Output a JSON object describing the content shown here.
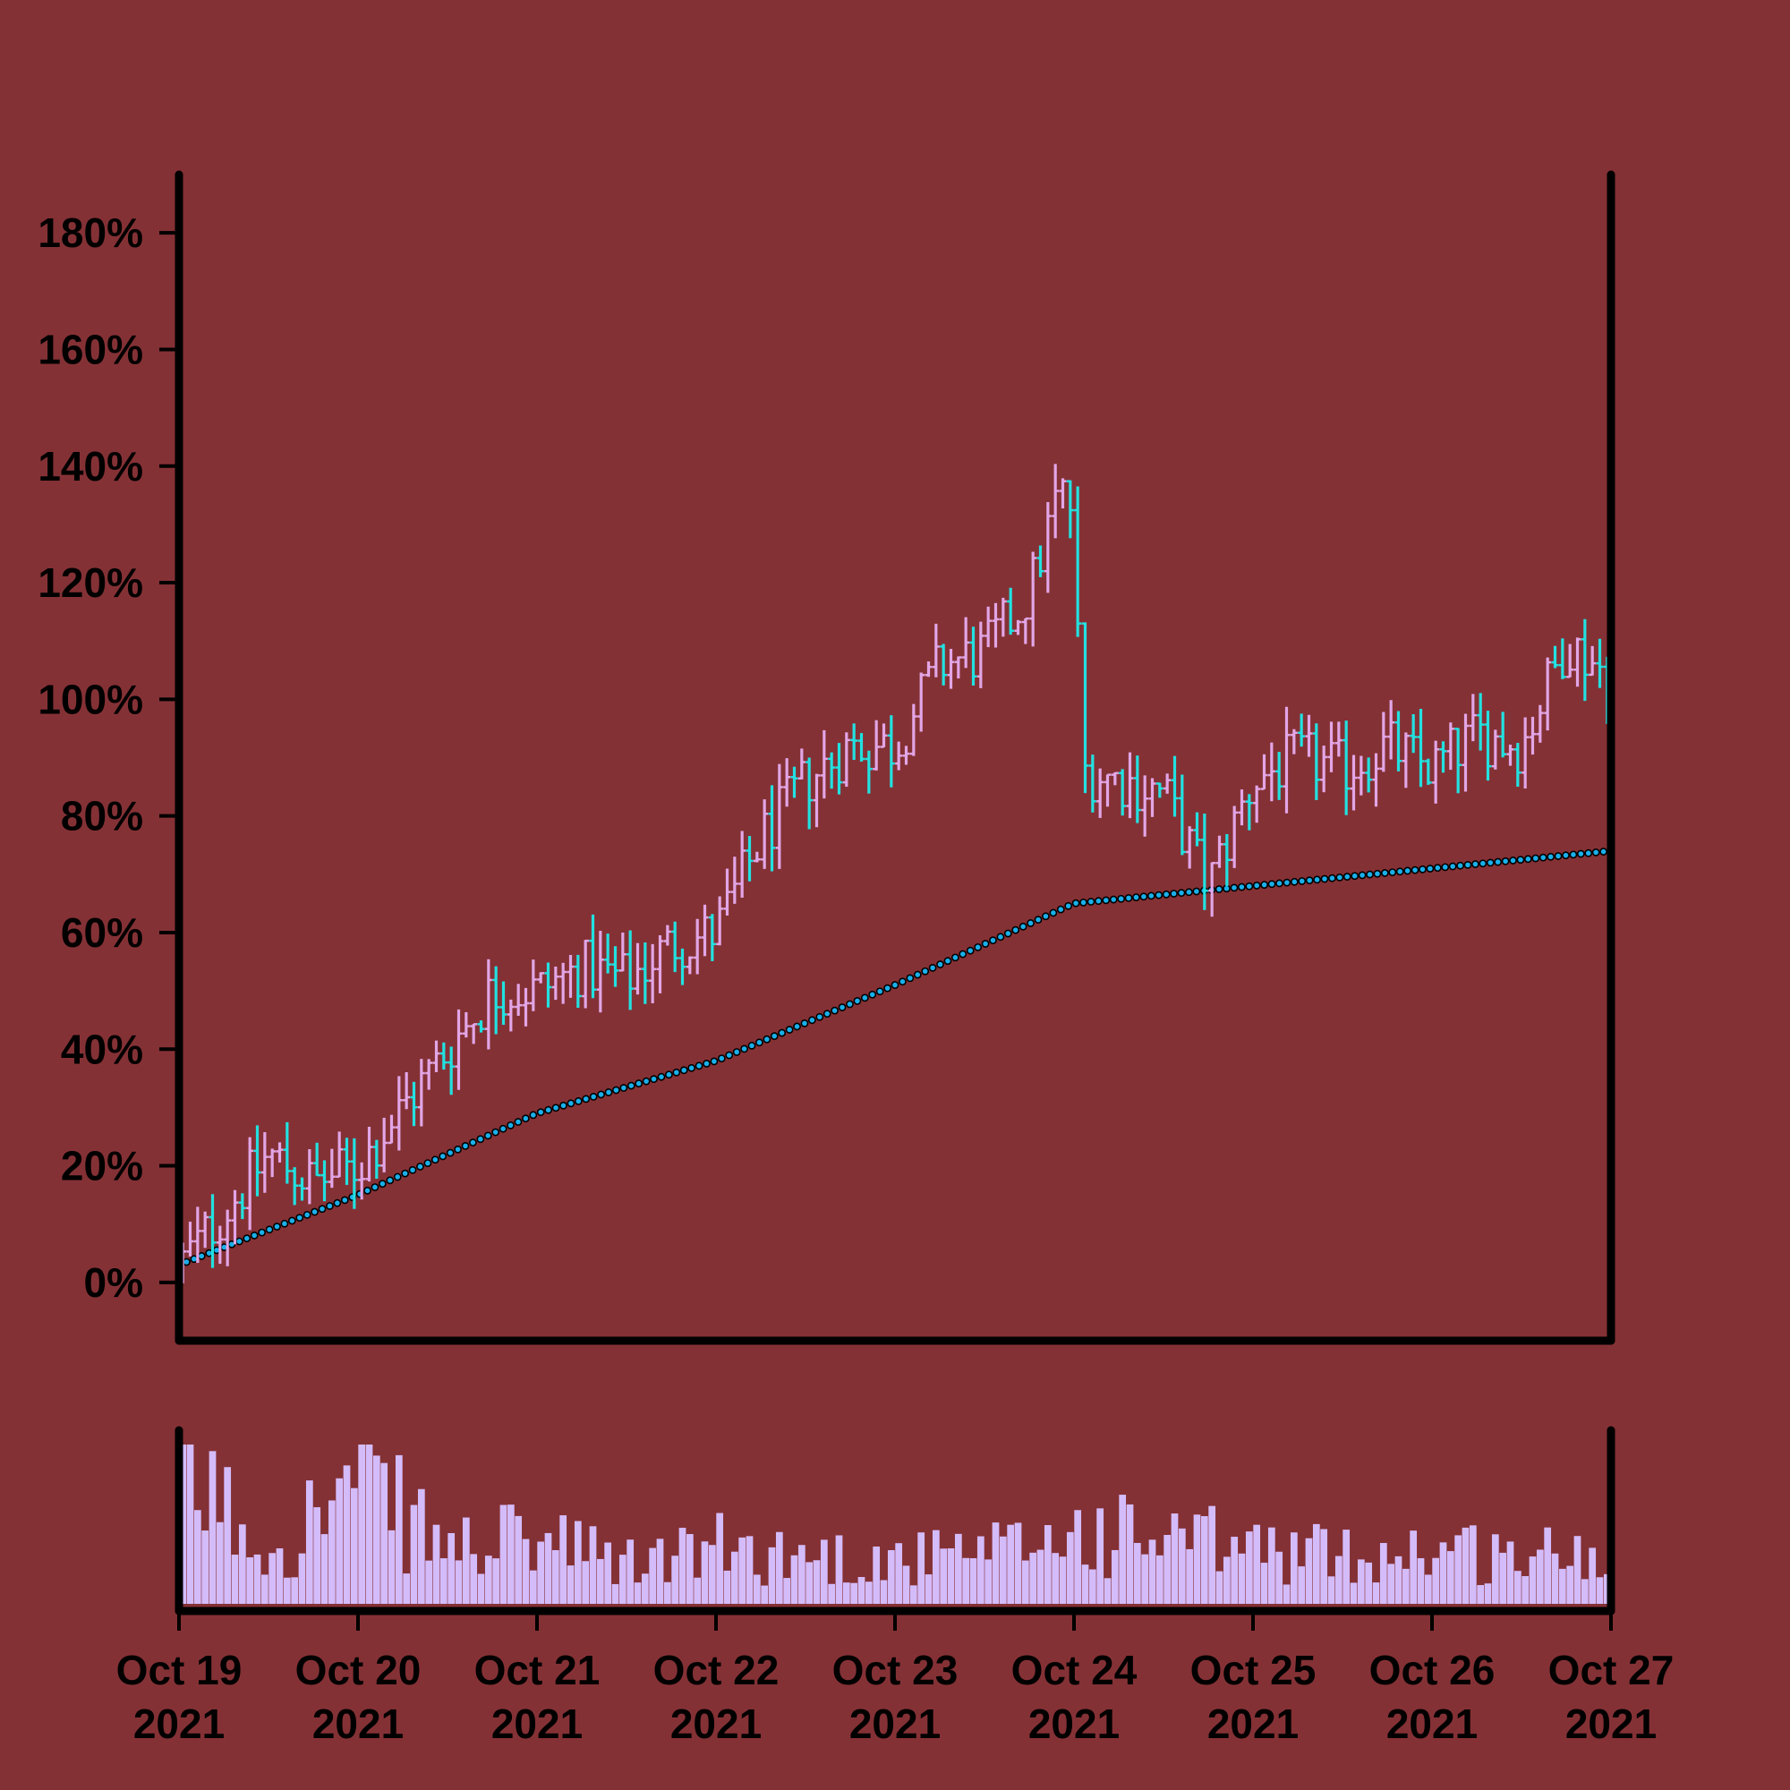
{
  "chart_data": {
    "type": "ohlc",
    "title": "",
    "xlabel": "",
    "ylabel": "",
    "background_color": "#843135",
    "up_color": "#e2a6e6",
    "down_color": "#22e1e0",
    "ma_color": "#1ab0ea",
    "volume_color": "#d4bcfb",
    "y_axis": {
      "range": [
        -10,
        190
      ],
      "ticks": [
        {
          "value": 0,
          "label": "0%"
        },
        {
          "value": 20,
          "label": "20%"
        },
        {
          "value": 40,
          "label": "40%"
        },
        {
          "value": 60,
          "label": "60%"
        },
        {
          "value": 80,
          "label": "80%"
        },
        {
          "value": 100,
          "label": "100%"
        },
        {
          "value": 120,
          "label": "120%"
        },
        {
          "value": 140,
          "label": "140%"
        },
        {
          "value": 160,
          "label": "160%"
        },
        {
          "value": 180,
          "label": "180%"
        }
      ]
    },
    "x_axis": {
      "range": [
        "2021-10-19",
        "2021-10-27"
      ],
      "ticks": [
        {
          "date": "2021-10-19",
          "line1": "Oct 19",
          "line2": "2021"
        },
        {
          "date": "2021-10-20",
          "line1": "Oct 20",
          "line2": "2021"
        },
        {
          "date": "2021-10-21",
          "line1": "Oct 21",
          "line2": "2021"
        },
        {
          "date": "2021-10-22",
          "line1": "Oct 22",
          "line2": "2021"
        },
        {
          "date": "2021-10-23",
          "line1": "Oct 23",
          "line2": "2021"
        },
        {
          "date": "2021-10-24",
          "line1": "Oct 24",
          "line2": "2021"
        },
        {
          "date": "2021-10-25",
          "line1": "Oct 25",
          "line2": "2021"
        },
        {
          "date": "2021-10-26",
          "line1": "Oct 26",
          "line2": "2021"
        },
        {
          "date": "2021-10-27",
          "line1": "Oct 27",
          "line2": "2021"
        }
      ]
    },
    "close_trend": [
      [
        "2021-10-19 00:00",
        3
      ],
      [
        "2021-10-19 06:00",
        12
      ],
      [
        "2021-10-19 12:00",
        22
      ],
      [
        "2021-10-19 18:00",
        17
      ],
      [
        "2021-10-20 00:00",
        20
      ],
      [
        "2021-10-20 06:00",
        30
      ],
      [
        "2021-10-20 12:00",
        40
      ],
      [
        "2021-10-20 18:00",
        50
      ],
      [
        "2021-10-21 00:00",
        50
      ],
      [
        "2021-10-21 06:00",
        54
      ],
      [
        "2021-10-21 12:00",
        52
      ],
      [
        "2021-10-21 18:00",
        58
      ],
      [
        "2021-10-22 00:00",
        60
      ],
      [
        "2021-10-22 06:00",
        76
      ],
      [
        "2021-10-22 12:00",
        86
      ],
      [
        "2021-10-22 18:00",
        92
      ],
      [
        "2021-10-23 00:00",
        92
      ],
      [
        "2021-10-23 06:00",
        106
      ],
      [
        "2021-10-23 12:00",
        108
      ],
      [
        "2021-10-23 18:00",
        118
      ],
      [
        "2021-10-23 22:00",
        136
      ],
      [
        "2021-10-24 00:00",
        132
      ],
      [
        "2021-10-24 01:00",
        88
      ],
      [
        "2021-10-24 12:00",
        84
      ],
      [
        "2021-10-24 18:00",
        68
      ],
      [
        "2021-10-25 00:00",
        86
      ],
      [
        "2021-10-25 06:00",
        90
      ],
      [
        "2021-10-25 12:00",
        88
      ],
      [
        "2021-10-25 18:00",
        92
      ],
      [
        "2021-10-26 00:00",
        88
      ],
      [
        "2021-10-26 06:00",
        94
      ],
      [
        "2021-10-26 12:00",
        92
      ],
      [
        "2021-10-26 18:00",
        110
      ],
      [
        "2021-10-27 00:00",
        104
      ]
    ],
    "moving_average": [
      [
        "2021-10-19 00:00",
        3
      ],
      [
        "2021-10-20 00:00",
        15
      ],
      [
        "2021-10-21 00:00",
        29
      ],
      [
        "2021-10-22 00:00",
        38
      ],
      [
        "2021-10-23 00:00",
        51
      ],
      [
        "2021-10-24 00:00",
        65
      ],
      [
        "2021-10-25 00:00",
        68
      ],
      [
        "2021-10-26 00:00",
        71
      ],
      [
        "2021-10-27 00:00",
        74
      ]
    ],
    "volume_trend": [
      [
        "2021-10-19 00:00",
        0.85
      ],
      [
        "2021-10-19 12:00",
        0.35
      ],
      [
        "2021-10-20 00:00",
        0.75
      ],
      [
        "2021-10-20 12:00",
        0.35
      ],
      [
        "2021-10-21 00:00",
        0.4
      ],
      [
        "2021-10-21 12:00",
        0.25
      ],
      [
        "2021-10-22 00:00",
        0.35
      ],
      [
        "2021-10-22 12:00",
        0.3
      ],
      [
        "2021-10-23 00:00",
        0.28
      ],
      [
        "2021-10-23 12:00",
        0.3
      ],
      [
        "2021-10-24 00:00",
        0.45
      ],
      [
        "2021-10-24 12:00",
        0.4
      ],
      [
        "2021-10-25 00:00",
        0.35
      ],
      [
        "2021-10-25 12:00",
        0.3
      ],
      [
        "2021-10-26 00:00",
        0.35
      ],
      [
        "2021-10-26 12:00",
        0.3
      ],
      [
        "2021-10-27 00:00",
        0.32
      ]
    ]
  }
}
